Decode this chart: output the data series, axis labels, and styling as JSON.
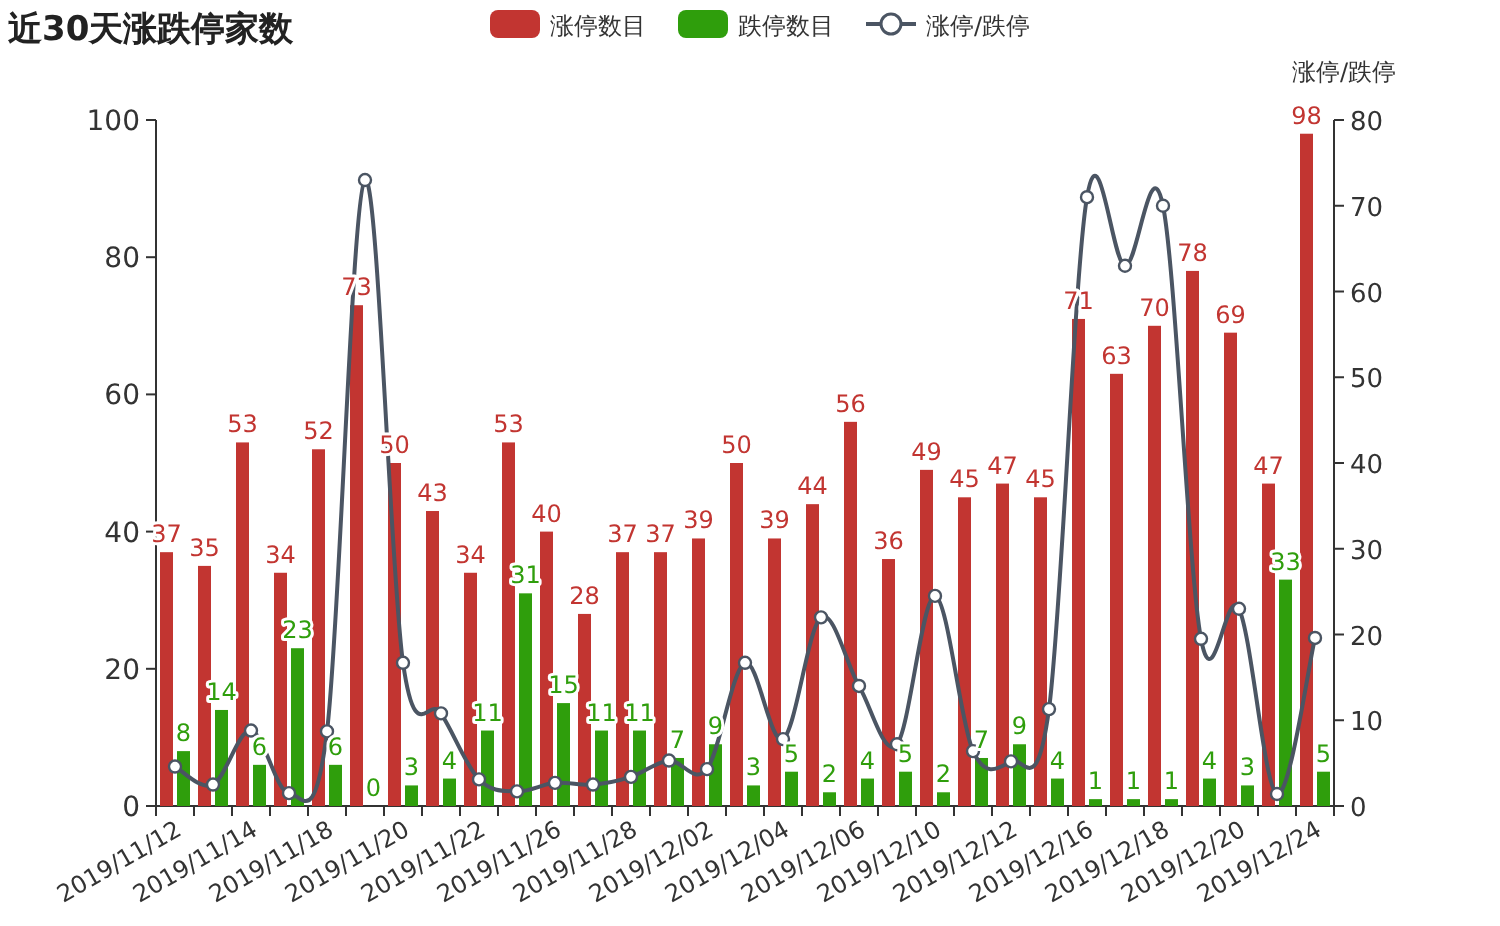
{
  "chart_data": {
    "type": "bar",
    "title": "近30天涨跌停家数",
    "categories": [
      "2019/11/12",
      null,
      "2019/11/14",
      null,
      "2019/11/18",
      null,
      "2019/11/20",
      null,
      "2019/11/22",
      null,
      "2019/11/26",
      null,
      "2019/11/28",
      null,
      "2019/12/02",
      null,
      "2019/12/04",
      null,
      "2019/12/06",
      null,
      "2019/12/10",
      null,
      "2019/12/12",
      null,
      "2019/12/16",
      null,
      "2019/12/18",
      null,
      "2019/12/20",
      null,
      "2019/12/24"
    ],
    "series": [
      {
        "name": "涨停数目",
        "color": "#c23531",
        "data_labels": true,
        "values": [
          37,
          35,
          53,
          34,
          52,
          73,
          50,
          43,
          34,
          53,
          40,
          28,
          37,
          37,
          39,
          50,
          39,
          44,
          56,
          36,
          49,
          45,
          47,
          45,
          71,
          63,
          70,
          78,
          69,
          47,
          98
        ]
      },
      {
        "name": "跌停数目",
        "color": "#2f9e0c",
        "data_labels": true,
        "values": [
          8,
          14,
          6,
          23,
          6,
          0,
          3,
          4,
          11,
          31,
          15,
          11,
          11,
          7,
          9,
          3,
          5,
          2,
          4,
          5,
          2,
          7,
          9,
          4,
          1,
          1,
          1,
          4,
          3,
          33,
          5
        ]
      },
      {
        "name": "涨停/跌停",
        "type": "line",
        "axis": "y2",
        "color": "#4b5563",
        "marker": "circle",
        "values": [
          4.6,
          2.5,
          8.8,
          1.5,
          8.7,
          73,
          16.7,
          10.8,
          3.1,
          1.7,
          2.7,
          2.5,
          3.4,
          5.3,
          4.3,
          16.7,
          7.8,
          22,
          14,
          7.2,
          24.5,
          6.4,
          5.2,
          11.3,
          71,
          63,
          70,
          19.5,
          23,
          1.4,
          19.6
        ]
      }
    ],
    "ylim": [
      0,
      100
    ],
    "yticks": [
      0,
      20,
      40,
      60,
      80,
      100
    ],
    "y2label": "涨停/跌停",
    "y2lim": [
      0,
      80
    ],
    "y2ticks": [
      0,
      10,
      20,
      30,
      40,
      50,
      60,
      70,
      80
    ],
    "legend": "top",
    "grid": false
  }
}
